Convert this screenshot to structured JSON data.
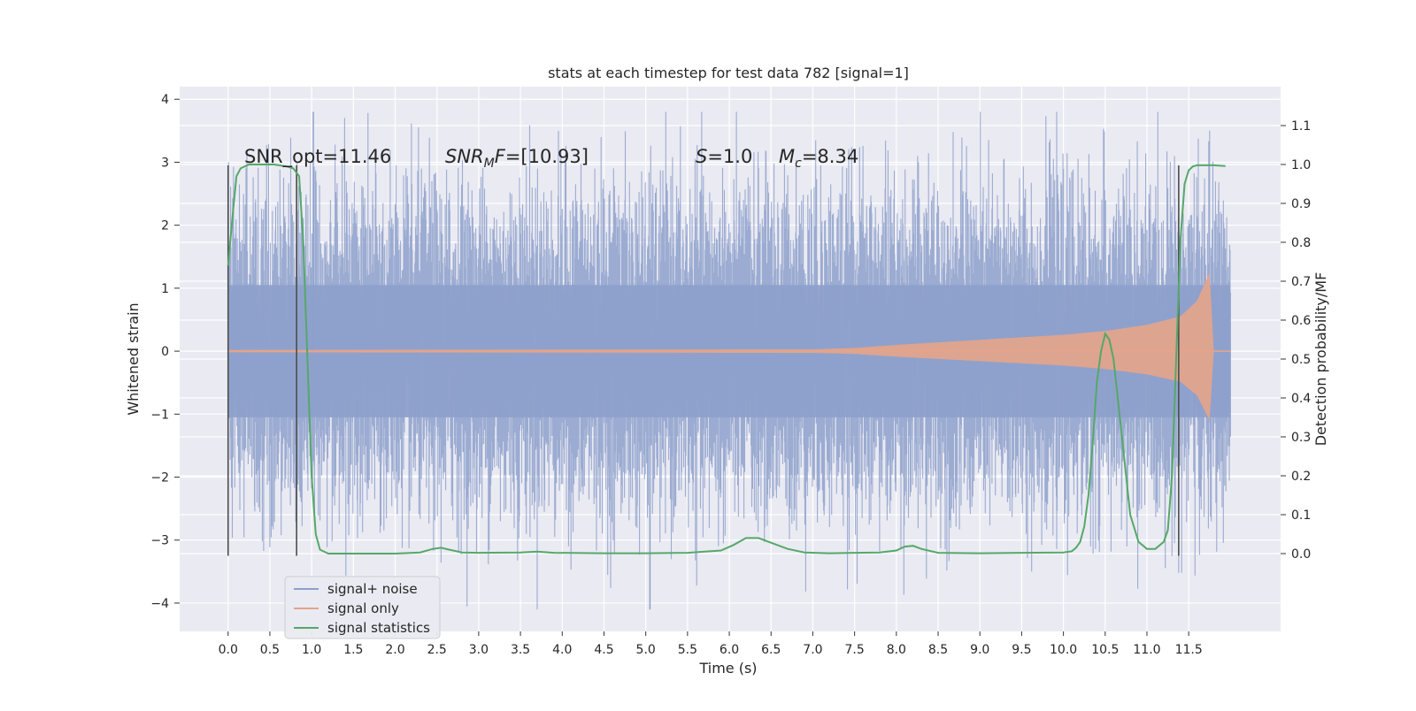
{
  "chart_data": {
    "type": "line",
    "title": "stats at each timestep for test data 782 [signal=1]",
    "xlabel": "Time (s)",
    "ylabel": "Whitened strain",
    "ylabel_right": "Detection probability/MF",
    "xlim": [
      -0.58,
      12.6
    ],
    "ylim": [
      -4.45,
      4.2
    ],
    "ylim_right": [
      -0.2,
      1.2
    ],
    "grid": true,
    "x_ticks": [
      0.0,
      0.5,
      1.0,
      1.5,
      2.0,
      2.5,
      3.0,
      3.5,
      4.0,
      4.5,
      5.0,
      5.5,
      6.0,
      6.5,
      7.0,
      7.5,
      8.0,
      8.5,
      9.0,
      9.5,
      10.0,
      10.5,
      11.0,
      11.5
    ],
    "x_tick_labels": [
      "0.0",
      "0.5",
      "1.0",
      "1.5",
      "2.0",
      "2.5",
      "3.0",
      "3.5",
      "4.0",
      "4.5",
      "5.0",
      "5.5",
      "6.0",
      "6.5",
      "7.0",
      "7.5",
      "8.0",
      "8.5",
      "9.0",
      "9.5",
      "10.0",
      "10.5",
      "11.0",
      "11.5"
    ],
    "y_ticks": [
      -4,
      -3,
      -2,
      -1,
      0,
      1,
      2,
      3,
      4
    ],
    "y_tick_labels": [
      "−4",
      "−3",
      "−2",
      "−1",
      "0",
      "1",
      "2",
      "3",
      "4"
    ],
    "y_right_ticks": [
      0.0,
      0.1,
      0.2,
      0.3,
      0.4,
      0.5,
      0.6,
      0.7,
      0.8,
      0.9,
      1.0,
      1.1
    ],
    "y_right_tick_labels": [
      "0.0",
      "0.1",
      "0.2",
      "0.3",
      "0.4",
      "0.5",
      "0.6",
      "0.7",
      "0.8",
      "0.9",
      "1.0",
      "1.1"
    ],
    "legend_position": "lower-left",
    "legend": [
      {
        "label": "signal+ noise",
        "color": "#8da0cb"
      },
      {
        "label": "signal only",
        "color": "#e5a48a"
      },
      {
        "label": "signal statistics",
        "color": "#55a868"
      }
    ],
    "annotations": [
      {
        "text": "SNR_opt=11.46",
        "x": 0.2,
        "y": 3.0
      },
      {
        "text": "SNR_MF=[10.93]",
        "x": 2.6,
        "y": 3.0
      },
      {
        "text": "S=1.0",
        "x": 5.6,
        "y": 3.0
      },
      {
        "text": "M_c=8.34",
        "x": 6.6,
        "y": 3.0
      }
    ],
    "vertical_lines": [
      {
        "x": 0.0,
        "y_range": [
          -3.25,
          2.95
        ]
      },
      {
        "x": 0.82,
        "y_range": [
          -3.25,
          2.95
        ]
      },
      {
        "x": 11.38,
        "y_range": [
          -3.25,
          2.95
        ]
      }
    ],
    "series": [
      {
        "name": "signal+ noise",
        "axis": "left",
        "x_range": [
          0.0,
          12.0
        ],
        "envelope_1sigma": 1.0,
        "peak_max": 3.8,
        "peak_min": -4.1
      },
      {
        "name": "signal only",
        "axis": "left",
        "x": [
          0.0,
          7.0,
          7.5,
          8.0,
          8.5,
          9.0,
          9.5,
          10.0,
          10.5,
          11.0,
          11.4,
          11.6,
          11.75,
          11.8,
          12.0
        ],
        "amplitude": [
          0.02,
          0.03,
          0.05,
          0.1,
          0.14,
          0.18,
          0.22,
          0.26,
          0.32,
          0.42,
          0.55,
          0.8,
          1.25,
          0.0,
          0.0
        ]
      },
      {
        "name": "signal statistics",
        "axis": "right",
        "x": [
          0.0,
          0.05,
          0.1,
          0.15,
          0.25,
          0.4,
          0.55,
          0.7,
          0.78,
          0.85,
          0.9,
          0.95,
          1.0,
          1.05,
          1.1,
          1.2,
          1.5,
          2.0,
          2.3,
          2.45,
          2.55,
          2.65,
          2.8,
          3.0,
          3.5,
          3.7,
          3.9,
          4.5,
          5.0,
          5.5,
          5.9,
          6.05,
          6.2,
          6.35,
          6.5,
          6.7,
          6.9,
          7.2,
          7.5,
          7.8,
          8.0,
          8.1,
          8.2,
          8.3,
          8.5,
          9.0,
          9.5,
          10.0,
          10.1,
          10.15,
          10.2,
          10.25,
          10.3,
          10.35,
          10.4,
          10.45,
          10.5,
          10.55,
          10.6,
          10.7,
          10.8,
          10.9,
          11.0,
          11.1,
          11.2,
          11.25,
          11.3,
          11.35,
          11.4,
          11.45,
          11.5,
          11.55,
          11.6,
          11.7,
          11.8,
          11.94
        ],
        "y": [
          0.74,
          0.86,
          0.97,
          0.99,
          1.0,
          1.0,
          1.0,
          0.995,
          0.99,
          0.97,
          0.8,
          0.5,
          0.2,
          0.05,
          0.01,
          0.0,
          0.0,
          0.0,
          0.003,
          0.012,
          0.015,
          0.01,
          0.003,
          0.002,
          0.003,
          0.005,
          0.002,
          0.001,
          0.001,
          0.002,
          0.008,
          0.022,
          0.04,
          0.04,
          0.028,
          0.012,
          0.003,
          0.001,
          0.002,
          0.003,
          0.008,
          0.018,
          0.02,
          0.012,
          0.002,
          0.001,
          0.002,
          0.003,
          0.006,
          0.015,
          0.03,
          0.07,
          0.15,
          0.28,
          0.44,
          0.52,
          0.565,
          0.55,
          0.5,
          0.3,
          0.1,
          0.03,
          0.012,
          0.012,
          0.03,
          0.06,
          0.2,
          0.5,
          0.8,
          0.95,
          0.985,
          0.995,
          0.998,
          0.998,
          0.998,
          0.996
        ]
      }
    ]
  }
}
